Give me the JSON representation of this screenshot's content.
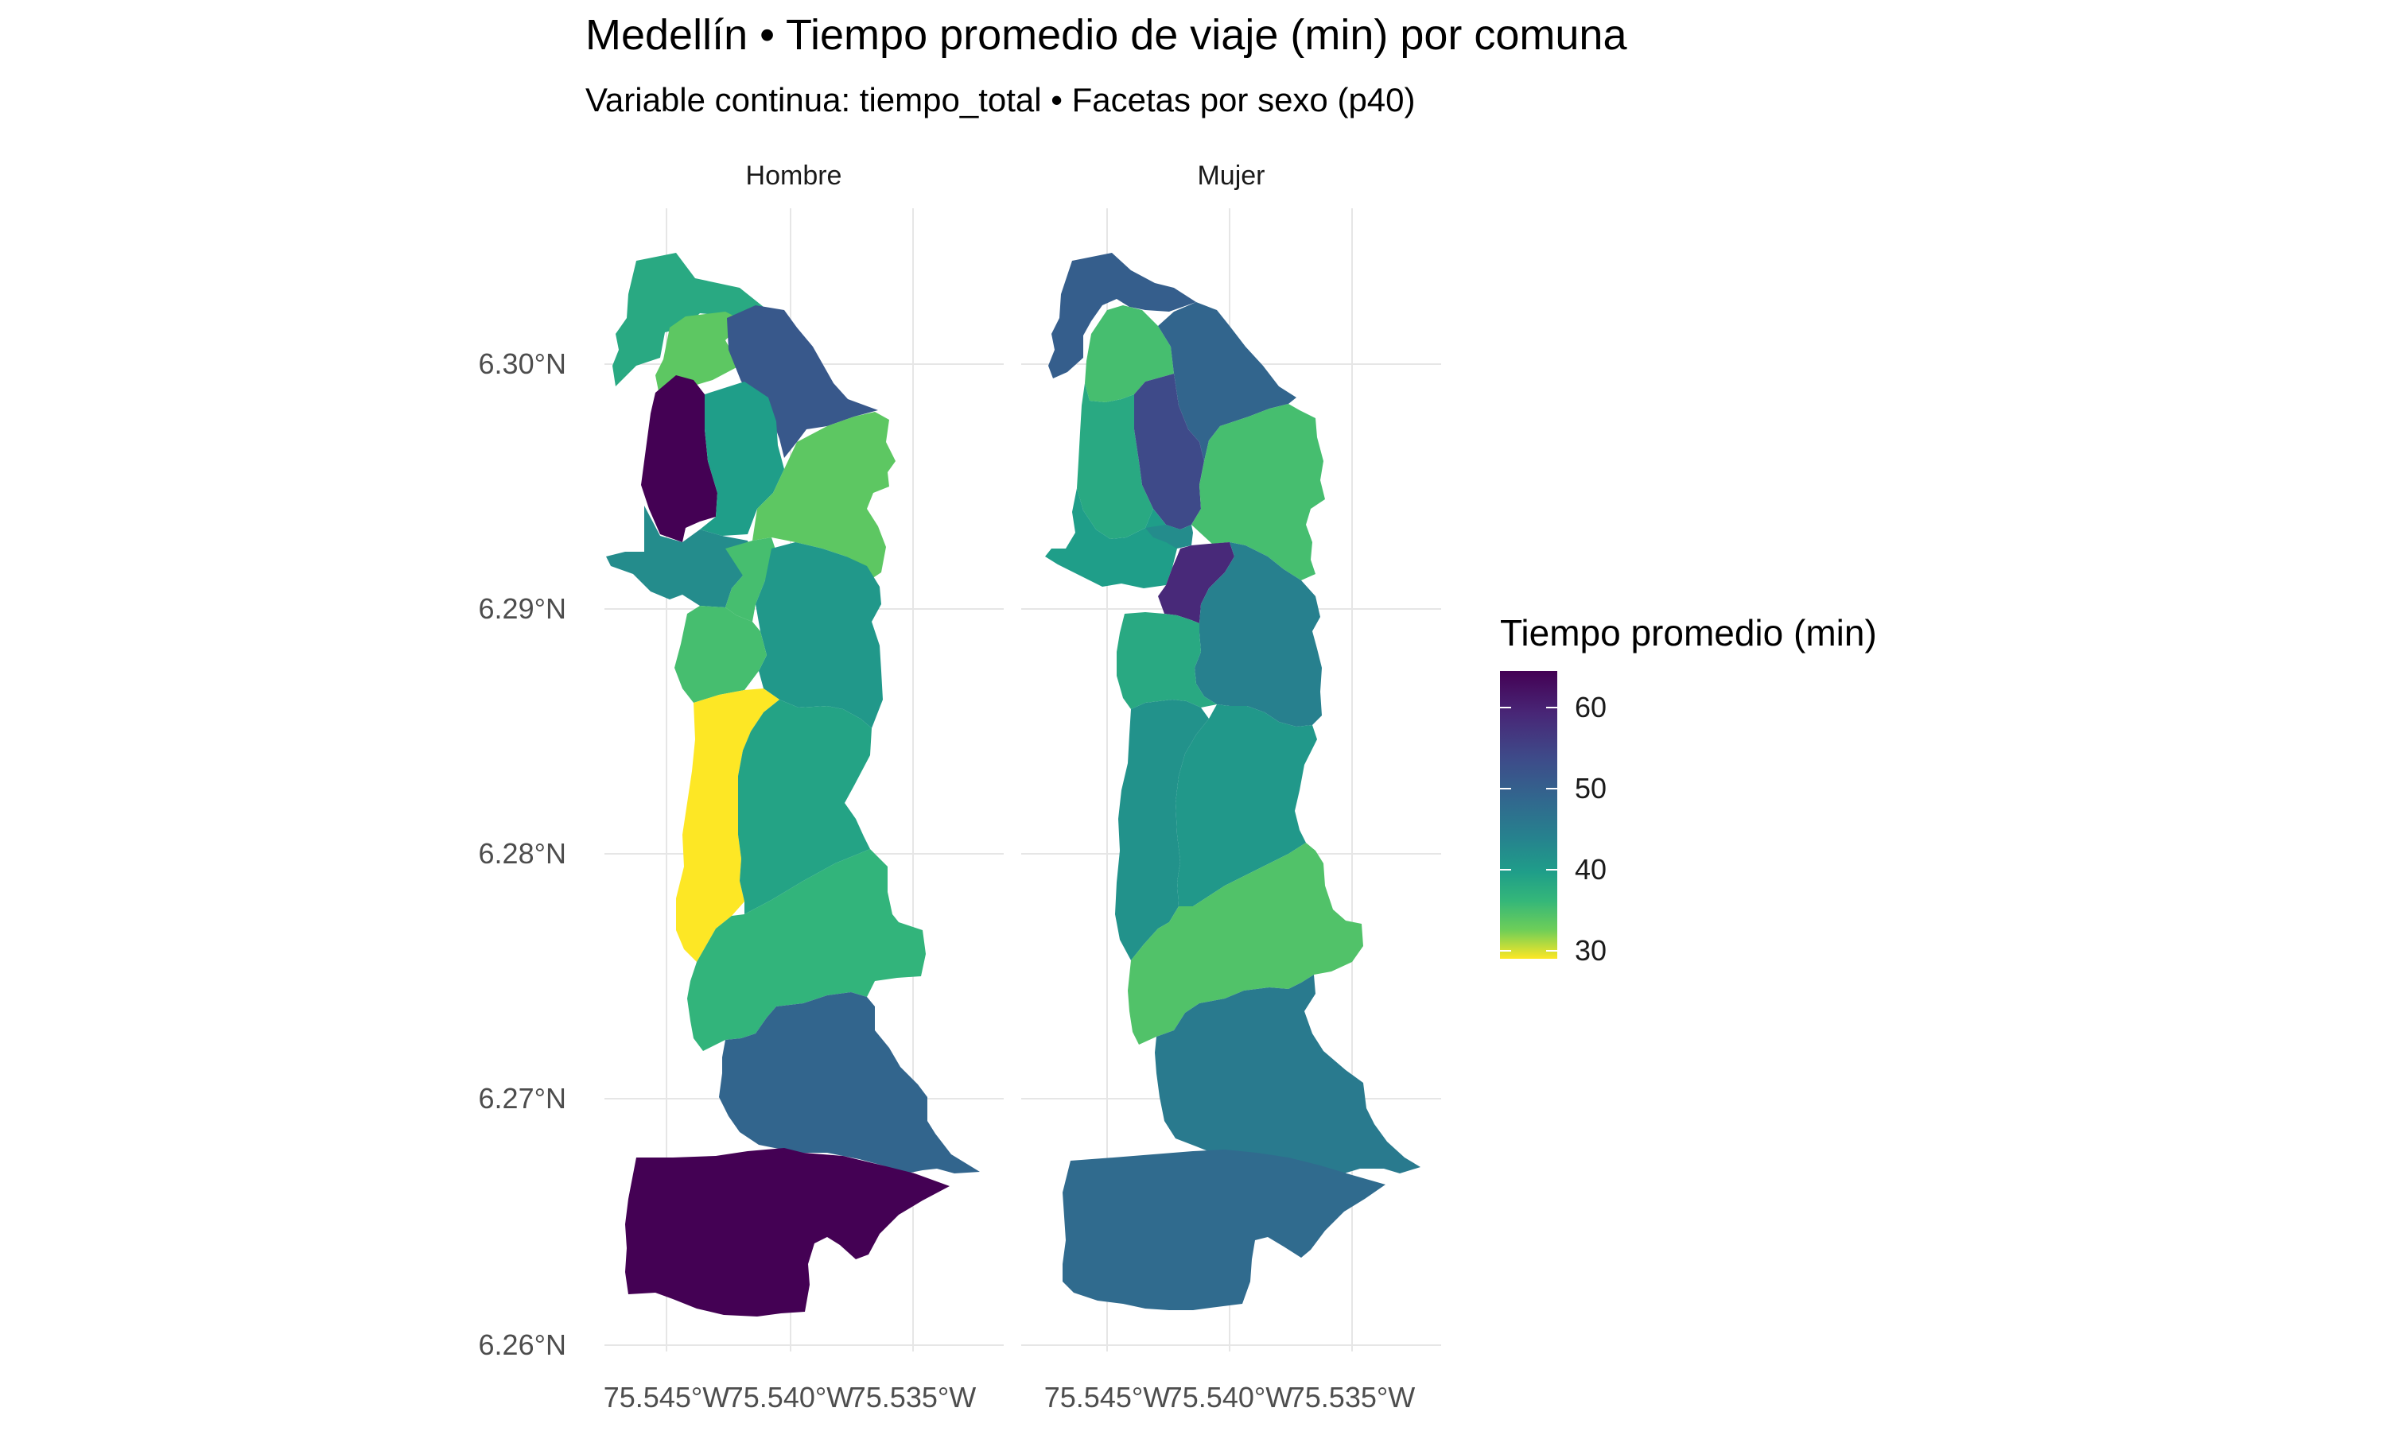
{
  "title": "Medellín • Tiempo promedio de viaje (min) por comuna",
  "subtitle": "Variable continua: tiempo_total • Facetas por sexo (p40)",
  "facets": [
    {
      "label": "Hombre"
    },
    {
      "label": "Mujer"
    }
  ],
  "axes": {
    "y_ticks": [
      "6.30°N",
      "6.29°N",
      "6.28°N",
      "6.27°N",
      "6.26°N"
    ],
    "x_ticks_hombre": [
      "75.545°W",
      "75.540°W",
      "75.535°W"
    ],
    "x_ticks_mujer": [
      "75.545°W",
      "75.540°W",
      "75.535°W"
    ]
  },
  "legend": {
    "title": "Tiempo promedio (min)",
    "labels": [
      "60",
      "50",
      "40",
      "30"
    ],
    "scale": "viridis (reversed)",
    "range": [
      27,
      65
    ]
  },
  "chart_data": {
    "type": "choropleth",
    "variable": "tiempo_total",
    "facet_by": "sexo (p40)",
    "regions_hombre": [
      {
        "region": "north-west-strip",
        "value": 44
      },
      {
        "region": "north-upper",
        "value": 38
      },
      {
        "region": "north-east",
        "value": 58
      },
      {
        "region": "north-west-dark",
        "value": 65
      },
      {
        "region": "north-central",
        "value": 46
      },
      {
        "region": "north-east-light",
        "value": 38
      },
      {
        "region": "west-lower",
        "value": 49
      },
      {
        "region": "center-narrow",
        "value": 40
      },
      {
        "region": "center-east",
        "value": 47
      },
      {
        "region": "center-west",
        "value": 40
      },
      {
        "region": "west-yellow",
        "value": 27
      },
      {
        "region": "center-east-large",
        "value": 45
      },
      {
        "region": "diagonal-band",
        "value": 42
      },
      {
        "region": "south-east",
        "value": 56
      },
      {
        "region": "southern-block",
        "value": 65
      }
    ],
    "regions_mujer": [
      {
        "region": "north-west-strip",
        "value": 57
      },
      {
        "region": "north-upper",
        "value": 40
      },
      {
        "region": "north-east",
        "value": 56
      },
      {
        "region": "north-west",
        "value": 44
      },
      {
        "region": "north-center-dark",
        "value": 60
      },
      {
        "region": "north-east-light",
        "value": 40
      },
      {
        "region": "west-lower",
        "value": 46
      },
      {
        "region": "center-teal",
        "value": 49
      },
      {
        "region": "center-dark",
        "value": 63
      },
      {
        "region": "center-east",
        "value": 51
      },
      {
        "region": "center-west",
        "value": 44
      },
      {
        "region": "west-large",
        "value": 48
      },
      {
        "region": "center-east-large",
        "value": 47
      },
      {
        "region": "diagonal-band",
        "value": 39
      },
      {
        "region": "south-east",
        "value": 52
      },
      {
        "region": "southern-block",
        "value": 55
      }
    ],
    "colors": {
      "v65": "#440154",
      "v60": "#482777",
      "v57": "#3e4a89",
      "v55": "#3b5d8c",
      "v52": "#31688e",
      "v50": "#2d7f8e",
      "v48": "#26888e",
      "v46": "#20a386",
      "v44": "#3bba75",
      "v42": "#5ec269",
      "v40": "#7ad151",
      "v38": "#a9d645",
      "v27": "#fde725"
    }
  }
}
